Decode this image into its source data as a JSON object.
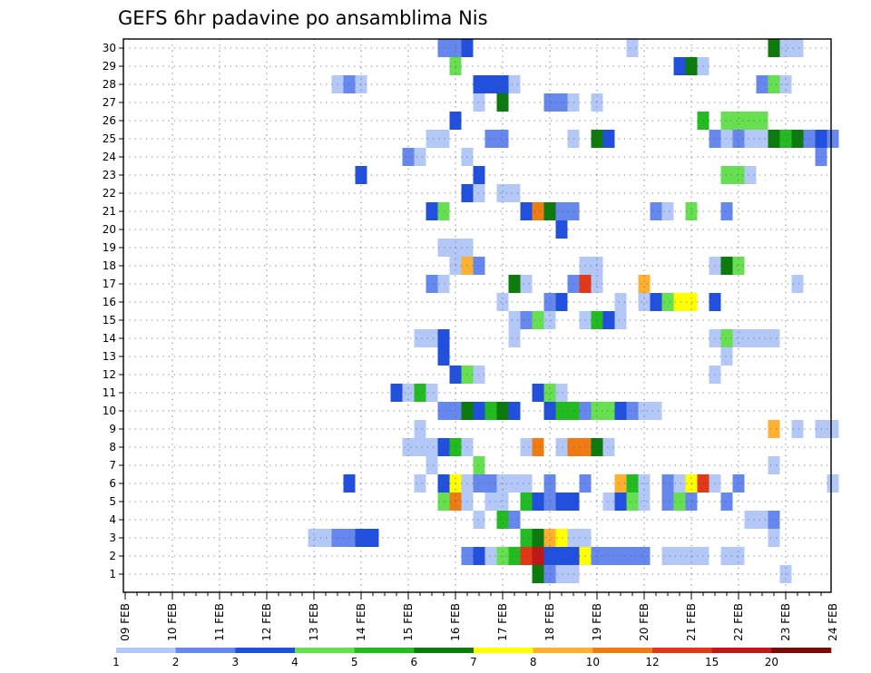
{
  "chart_data": {
    "type": "heatmap",
    "title": "GEFS 6hr padavine po ansamblima Nis",
    "xlabel": "",
    "ylabel": "",
    "x_tick_labels": [
      "09 FEB",
      "10 FEB",
      "11 FEB",
      "12 FEB",
      "13 FEB",
      "14 FEB",
      "15 FEB",
      "16 FEB",
      "17 FEB",
      "18 FEB",
      "19 FEB",
      "20 FEB",
      "21 FEB",
      "22 FEB",
      "23 FEB",
      "24 FEB"
    ],
    "y_tick_labels": [
      "1",
      "2",
      "3",
      "4",
      "5",
      "6",
      "7",
      "8",
      "9",
      "10",
      "11",
      "12",
      "13",
      "14",
      "15",
      "16",
      "17",
      "18",
      "19",
      "20",
      "21",
      "22",
      "23",
      "24",
      "25",
      "26",
      "27",
      "28",
      "29",
      "30"
    ],
    "x_range_steps": 60,
    "steps_per_day": 4,
    "levels": [
      1,
      2,
      3,
      4,
      5,
      6,
      7,
      8,
      10,
      12,
      15,
      20
    ],
    "colors": [
      "#b4c8f8",
      "#6688ee",
      "#2050dd",
      "#66e050",
      "#22bb22",
      "#0c7a0c",
      "#ffff00",
      "#ffb030",
      "#f07a14",
      "#e03818",
      "#c01818",
      "#7a0a0a"
    ],
    "grid": "dotted",
    "cells": [
      {
        "member": 30,
        "cells": [
          [
            27,
            1
          ],
          [
            28,
            1
          ],
          [
            29,
            2
          ],
          [
            43,
            0
          ],
          [
            55,
            5
          ],
          [
            56,
            0
          ],
          [
            57,
            0
          ]
        ]
      },
      {
        "member": 29,
        "cells": [
          [
            28,
            3
          ],
          [
            47,
            2
          ],
          [
            48,
            5
          ],
          [
            49,
            0
          ]
        ]
      },
      {
        "member": 28,
        "cells": [
          [
            18,
            0
          ],
          [
            19,
            1
          ],
          [
            20,
            0
          ],
          [
            30,
            2
          ],
          [
            31,
            2
          ],
          [
            32,
            2
          ],
          [
            33,
            0
          ],
          [
            54,
            1
          ],
          [
            55,
            3
          ],
          [
            56,
            0
          ]
        ]
      },
      {
        "member": 27,
        "cells": [
          [
            30,
            0
          ],
          [
            32,
            5
          ],
          [
            36,
            1
          ],
          [
            37,
            1
          ],
          [
            38,
            0
          ],
          [
            40,
            0
          ]
        ]
      },
      {
        "member": 26,
        "cells": [
          [
            28,
            2
          ],
          [
            49,
            4
          ],
          [
            51,
            3
          ],
          [
            52,
            3
          ],
          [
            53,
            3
          ],
          [
            54,
            3
          ]
        ]
      },
      {
        "member": 25,
        "cells": [
          [
            26,
            0
          ],
          [
            27,
            0
          ],
          [
            31,
            1
          ],
          [
            32,
            1
          ],
          [
            38,
            0
          ],
          [
            40,
            5
          ],
          [
            41,
            2
          ],
          [
            50,
            1
          ],
          [
            51,
            0
          ],
          [
            52,
            1
          ],
          [
            53,
            0
          ],
          [
            54,
            0
          ],
          [
            55,
            5
          ],
          [
            56,
            4
          ],
          [
            57,
            5
          ],
          [
            58,
            1
          ],
          [
            59,
            2
          ],
          [
            60,
            1
          ]
        ]
      },
      {
        "member": 24,
        "cells": [
          [
            24,
            1
          ],
          [
            25,
            0
          ],
          [
            29,
            0
          ],
          [
            59,
            1
          ]
        ]
      },
      {
        "member": 23,
        "cells": [
          [
            20,
            2
          ],
          [
            30,
            2
          ],
          [
            51,
            3
          ],
          [
            52,
            3
          ],
          [
            53,
            0
          ]
        ]
      },
      {
        "member": 22,
        "cells": [
          [
            29,
            2
          ],
          [
            30,
            0
          ],
          [
            32,
            0
          ],
          [
            33,
            0
          ]
        ]
      },
      {
        "member": 21,
        "cells": [
          [
            26,
            2
          ],
          [
            27,
            3
          ],
          [
            34,
            2
          ],
          [
            35,
            8
          ],
          [
            36,
            5
          ],
          [
            37,
            1
          ],
          [
            38,
            1
          ],
          [
            45,
            1
          ],
          [
            46,
            0
          ],
          [
            48,
            3
          ],
          [
            51,
            1
          ]
        ]
      },
      {
        "member": 20,
        "cells": [
          [
            37,
            2
          ]
        ]
      },
      {
        "member": 19,
        "cells": [
          [
            27,
            0
          ],
          [
            28,
            0
          ],
          [
            29,
            0
          ]
        ]
      },
      {
        "member": 18,
        "cells": [
          [
            28,
            0
          ],
          [
            29,
            7
          ],
          [
            30,
            1
          ],
          [
            39,
            0
          ],
          [
            40,
            0
          ],
          [
            50,
            0
          ],
          [
            51,
            5
          ],
          [
            52,
            3
          ]
        ]
      },
      {
        "member": 17,
        "cells": [
          [
            26,
            1
          ],
          [
            27,
            0
          ],
          [
            33,
            5
          ],
          [
            34,
            0
          ],
          [
            38,
            1
          ],
          [
            39,
            9
          ],
          [
            40,
            0
          ],
          [
            44,
            7
          ],
          [
            57,
            0
          ]
        ]
      },
      {
        "member": 16,
        "cells": [
          [
            32,
            0
          ],
          [
            36,
            1
          ],
          [
            37,
            2
          ],
          [
            42,
            0
          ],
          [
            44,
            0
          ],
          [
            45,
            2
          ],
          [
            46,
            3
          ],
          [
            47,
            6
          ],
          [
            48,
            6
          ],
          [
            50,
            2
          ]
        ]
      },
      {
        "member": 15,
        "cells": [
          [
            33,
            0
          ],
          [
            34,
            1
          ],
          [
            35,
            3
          ],
          [
            36,
            0
          ],
          [
            39,
            0
          ],
          [
            40,
            4
          ],
          [
            41,
            2
          ],
          [
            42,
            0
          ]
        ]
      },
      {
        "member": 14,
        "cells": [
          [
            25,
            0
          ],
          [
            26,
            0
          ],
          [
            27,
            2
          ],
          [
            33,
            0
          ],
          [
            50,
            0
          ],
          [
            51,
            3
          ],
          [
            52,
            0
          ],
          [
            53,
            0
          ],
          [
            54,
            0
          ],
          [
            55,
            0
          ]
        ]
      },
      {
        "member": 13,
        "cells": [
          [
            27,
            2
          ],
          [
            51,
            0
          ]
        ]
      },
      {
        "member": 12,
        "cells": [
          [
            28,
            2
          ],
          [
            29,
            3
          ],
          [
            30,
            0
          ],
          [
            50,
            0
          ]
        ]
      },
      {
        "member": 11,
        "cells": [
          [
            23,
            2
          ],
          [
            24,
            0
          ],
          [
            25,
            4
          ],
          [
            26,
            0
          ],
          [
            35,
            2
          ],
          [
            36,
            3
          ],
          [
            37,
            0
          ]
        ]
      },
      {
        "member": 10,
        "cells": [
          [
            27,
            1
          ],
          [
            28,
            1
          ],
          [
            29,
            5
          ],
          [
            30,
            2
          ],
          [
            31,
            4
          ],
          [
            32,
            5
          ],
          [
            33,
            2
          ],
          [
            36,
            2
          ],
          [
            37,
            4
          ],
          [
            38,
            4
          ],
          [
            39,
            1
          ],
          [
            40,
            3
          ],
          [
            41,
            3
          ],
          [
            42,
            2
          ],
          [
            43,
            1
          ],
          [
            44,
            0
          ],
          [
            45,
            0
          ]
        ]
      },
      {
        "member": 9,
        "cells": [
          [
            25,
            0
          ],
          [
            55,
            7
          ],
          [
            57,
            0
          ],
          [
            59,
            0
          ],
          [
            60,
            0
          ]
        ]
      },
      {
        "member": 8,
        "cells": [
          [
            24,
            0
          ],
          [
            25,
            0
          ],
          [
            26,
            0
          ],
          [
            27,
            2
          ],
          [
            28,
            4
          ],
          [
            29,
            0
          ],
          [
            34,
            0
          ],
          [
            35,
            8
          ],
          [
            37,
            0
          ],
          [
            38,
            8
          ],
          [
            39,
            8
          ],
          [
            40,
            5
          ],
          [
            41,
            0
          ]
        ]
      },
      {
        "member": 7,
        "cells": [
          [
            26,
            0
          ],
          [
            30,
            3
          ],
          [
            55,
            0
          ]
        ]
      },
      {
        "member": 6,
        "cells": [
          [
            19,
            2
          ],
          [
            25,
            0
          ],
          [
            27,
            2
          ],
          [
            28,
            6
          ],
          [
            29,
            0
          ],
          [
            30,
            1
          ],
          [
            31,
            1
          ],
          [
            32,
            0
          ],
          [
            33,
            0
          ],
          [
            34,
            0
          ],
          [
            36,
            1
          ],
          [
            39,
            1
          ],
          [
            42,
            7
          ],
          [
            43,
            4
          ],
          [
            44,
            0
          ],
          [
            46,
            1
          ],
          [
            47,
            0
          ],
          [
            48,
            6
          ],
          [
            49,
            9
          ],
          [
            50,
            0
          ],
          [
            52,
            1
          ],
          [
            60,
            0
          ]
        ]
      },
      {
        "member": 5,
        "cells": [
          [
            27,
            3
          ],
          [
            28,
            8
          ],
          [
            29,
            0
          ],
          [
            31,
            0
          ],
          [
            32,
            0
          ],
          [
            34,
            4
          ],
          [
            35,
            2
          ],
          [
            36,
            1
          ],
          [
            37,
            2
          ],
          [
            38,
            2
          ],
          [
            41,
            0
          ],
          [
            42,
            2
          ],
          [
            43,
            3
          ],
          [
            44,
            0
          ],
          [
            46,
            1
          ],
          [
            47,
            3
          ],
          [
            48,
            1
          ],
          [
            51,
            1
          ]
        ]
      },
      {
        "member": 4,
        "cells": [
          [
            30,
            0
          ],
          [
            32,
            4
          ],
          [
            33,
            1
          ],
          [
            53,
            0
          ],
          [
            54,
            0
          ],
          [
            55,
            1
          ]
        ]
      },
      {
        "member": 3,
        "cells": [
          [
            16,
            0
          ],
          [
            17,
            0
          ],
          [
            18,
            1
          ],
          [
            19,
            1
          ],
          [
            20,
            2
          ],
          [
            21,
            2
          ],
          [
            34,
            4
          ],
          [
            35,
            5
          ],
          [
            36,
            7
          ],
          [
            37,
            6
          ],
          [
            38,
            0
          ],
          [
            39,
            0
          ],
          [
            55,
            0
          ]
        ]
      },
      {
        "member": 2,
        "cells": [
          [
            29,
            1
          ],
          [
            30,
            2
          ],
          [
            31,
            0
          ],
          [
            32,
            3
          ],
          [
            33,
            4
          ],
          [
            34,
            9
          ],
          [
            35,
            10
          ],
          [
            36,
            2
          ],
          [
            37,
            2
          ],
          [
            38,
            2
          ],
          [
            39,
            6
          ],
          [
            40,
            1
          ],
          [
            41,
            1
          ],
          [
            42,
            1
          ],
          [
            43,
            1
          ],
          [
            44,
            1
          ],
          [
            46,
            0
          ],
          [
            47,
            0
          ],
          [
            48,
            0
          ],
          [
            49,
            0
          ],
          [
            51,
            0
          ],
          [
            52,
            0
          ]
        ]
      },
      {
        "member": 1,
        "cells": [
          [
            35,
            5
          ],
          [
            36,
            1
          ],
          [
            37,
            0
          ],
          [
            38,
            0
          ],
          [
            56,
            0
          ]
        ]
      }
    ]
  },
  "colorbar": {
    "labels": [
      "1",
      "2",
      "3",
      "4",
      "5",
      "6",
      "7",
      "8",
      "10",
      "12",
      "15",
      "20"
    ]
  }
}
